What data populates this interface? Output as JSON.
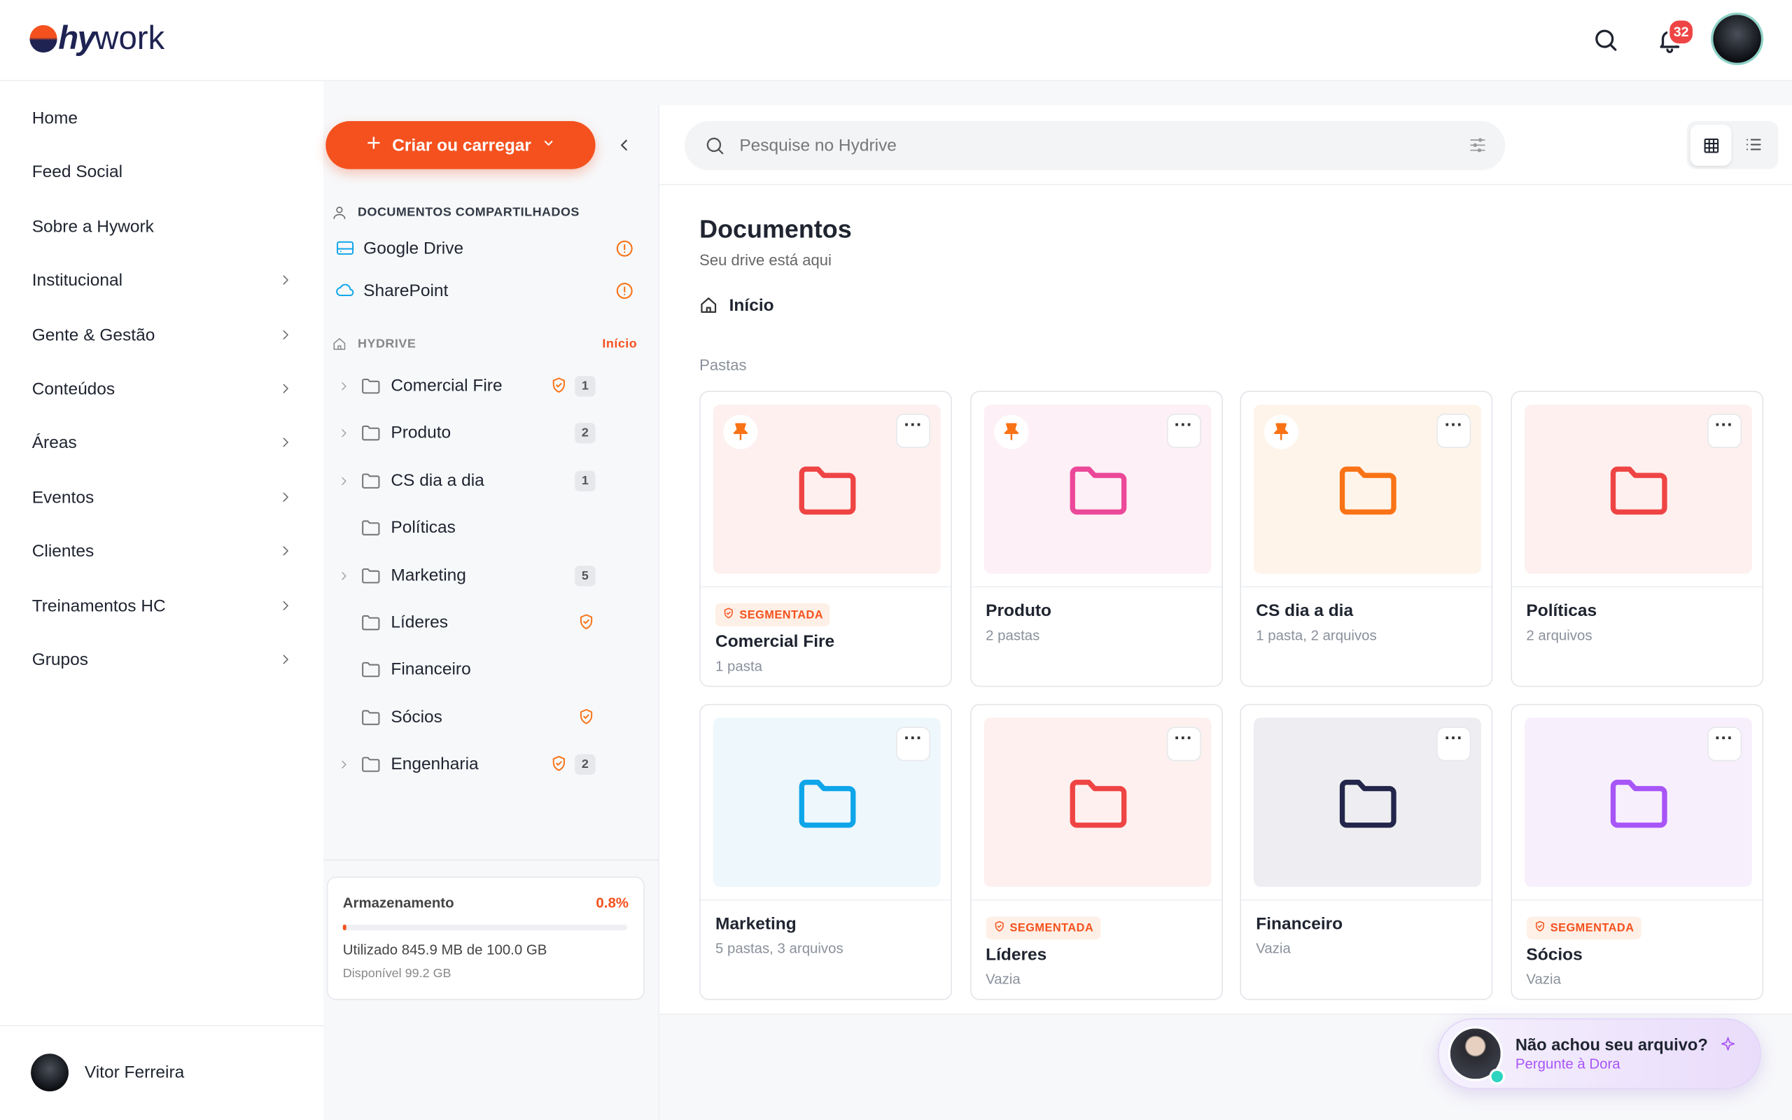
{
  "header": {
    "logo_prefix": "hy",
    "logo_suffix": "work",
    "notifications": "32"
  },
  "sidebar": {
    "items": [
      "Home",
      "Feed Social",
      "Sobre a Hywork",
      "Institucional",
      "Gente & Gestão",
      "Conteúdos",
      "Áreas",
      "Eventos",
      "Clientes",
      "Treinamentos HC",
      "Grupos"
    ],
    "expandable": [
      false,
      false,
      false,
      true,
      true,
      true,
      true,
      true,
      true,
      true,
      true
    ],
    "user": "Vitor Ferreira"
  },
  "drive": {
    "create_button": "Criar ou carregar",
    "shared_title": "DOCUMENTOS COMPARTILHADOS",
    "shared": [
      "Google Drive",
      "SharePoint"
    ],
    "hydrive_title": "HYDRIVE",
    "hydrive_link": "Início",
    "folders": [
      {
        "name": "Comercial Fire",
        "count": "1",
        "segmented": true,
        "expandable": true
      },
      {
        "name": "Produto",
        "count": "2",
        "segmented": false,
        "expandable": true
      },
      {
        "name": "CS dia a dia",
        "count": "1",
        "segmented": false,
        "expandable": true
      },
      {
        "name": "Políticas",
        "count": null,
        "segmented": false,
        "expandable": false
      },
      {
        "name": "Marketing",
        "count": "5",
        "segmented": false,
        "expandable": true
      },
      {
        "name": "Líderes",
        "count": null,
        "segmented": true,
        "expandable": false
      },
      {
        "name": "Financeiro",
        "count": null,
        "segmented": false,
        "expandable": false
      },
      {
        "name": "Sócios",
        "count": null,
        "segmented": true,
        "expandable": false
      },
      {
        "name": "Engenharia",
        "count": "2",
        "segmented": true,
        "expandable": true
      }
    ],
    "storage": {
      "title": "Armazenamento",
      "percent": {
        "value": 0.8,
        "label": "0.8%"
      },
      "used": "Utilizado 845.9 MB de 100.0 GB",
      "available": "Disponível 99.2 GB"
    }
  },
  "main": {
    "search_placeholder": "Pesquise no Hydrive",
    "title": "Documentos",
    "subtitle": "Seu drive está aqui",
    "breadcrumb": "Início",
    "section": "Pastas",
    "segmented_label": "SEGMENTADA",
    "cards": [
      {
        "name": "Comercial Fire",
        "meta": "1 pasta",
        "color": "#ef4444",
        "bg": "#fdf0ef",
        "pinned": true,
        "segmented": true
      },
      {
        "name": "Produto",
        "meta": "2 pastas",
        "color": "#ec4899",
        "bg": "#fdf0f6",
        "pinned": true,
        "segmented": false
      },
      {
        "name": "CS dia a dia",
        "meta": "1 pasta, 2 arquivos",
        "color": "#f97316",
        "bg": "#fef4ea",
        "pinned": true,
        "segmented": false
      },
      {
        "name": "Políticas",
        "meta": "2 arquivos",
        "color": "#ef4444",
        "bg": "#fdf0ef",
        "pinned": false,
        "segmented": false
      },
      {
        "name": "Marketing",
        "meta": "5 pastas, 3 arquivos",
        "color": "#0ea5e9",
        "bg": "#eef7fc",
        "pinned": false,
        "segmented": false
      },
      {
        "name": "Líderes",
        "meta": "Vazia",
        "color": "#ef4444",
        "bg": "#fdf0ef",
        "pinned": false,
        "segmented": true
      },
      {
        "name": "Financeiro",
        "meta": "Vazia",
        "color": "#23264a",
        "bg": "#eeeef2",
        "pinned": false,
        "segmented": false
      },
      {
        "name": "Sócios",
        "meta": "Vazia",
        "color": "#a855f7",
        "bg": "#f7f0fc",
        "pinned": false,
        "segmented": true
      }
    ]
  },
  "assistant": {
    "question": "Não achou seu arquivo?",
    "action": "Pergunte à Dora"
  }
}
